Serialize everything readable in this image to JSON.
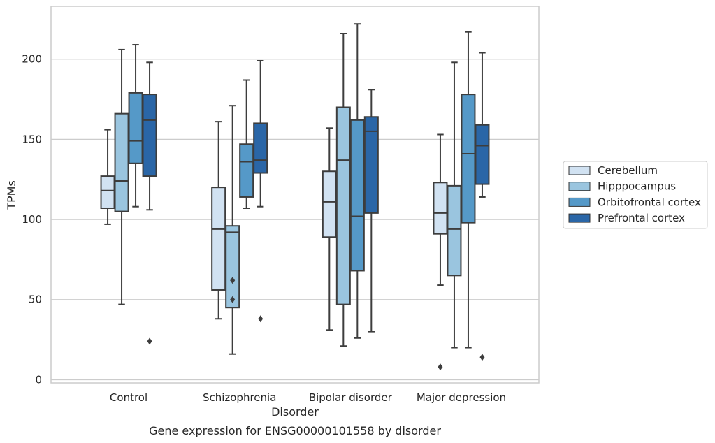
{
  "chart_data": {
    "type": "box",
    "xlabel": "Disorder",
    "ylabel": "TPMs",
    "caption": "Gene expression for ENSG00000101558 by disorder",
    "categories": [
      "Control",
      "Schizophrenia",
      "Bipolar disorder",
      "Major depression"
    ],
    "ylim": [
      -2,
      233
    ],
    "yticks": [
      0,
      50,
      100,
      150,
      200
    ],
    "grid": "horizontal",
    "legend_position": "right",
    "series": [
      {
        "name": "Cerebellum",
        "color": "#d1e2f2",
        "boxes": [
          {
            "whisker_low": 97,
            "q1": 107,
            "median": 118,
            "q3": 127,
            "whisker_high": 156,
            "outliers": []
          },
          {
            "whisker_low": 38,
            "q1": 56,
            "median": 94,
            "q3": 120,
            "whisker_high": 161,
            "outliers": []
          },
          {
            "whisker_low": 31,
            "q1": 89,
            "median": 111,
            "q3": 130,
            "whisker_high": 157,
            "outliers": []
          },
          {
            "whisker_low": 59,
            "q1": 91,
            "median": 104,
            "q3": 123,
            "whisker_high": 153,
            "outliers": [
              8
            ]
          }
        ]
      },
      {
        "name": "Hipppocampus",
        "color": "#9ac5df",
        "boxes": [
          {
            "whisker_low": 47,
            "q1": 105,
            "median": 124,
            "q3": 166,
            "whisker_high": 206,
            "outliers": []
          },
          {
            "whisker_low": 16,
            "q1": 45,
            "median": 92,
            "q3": 96,
            "whisker_high": 171,
            "outliers": [
              62,
              50
            ]
          },
          {
            "whisker_low": 21,
            "q1": 47,
            "median": 137,
            "q3": 170,
            "whisker_high": 216,
            "outliers": []
          },
          {
            "whisker_low": 20,
            "q1": 65,
            "median": 94,
            "q3": 121,
            "whisker_high": 198,
            "outliers": []
          }
        ]
      },
      {
        "name": "Orbitofrontal cortex",
        "color": "#5599c8",
        "boxes": [
          {
            "whisker_low": 108,
            "q1": 135,
            "median": 149,
            "q3": 179,
            "whisker_high": 209,
            "outliers": []
          },
          {
            "whisker_low": 107,
            "q1": 114,
            "median": 136,
            "q3": 147,
            "whisker_high": 187,
            "outliers": []
          },
          {
            "whisker_low": 26,
            "q1": 68,
            "median": 102,
            "q3": 162,
            "whisker_high": 222,
            "outliers": []
          },
          {
            "whisker_low": 20,
            "q1": 98,
            "median": 141,
            "q3": 178,
            "whisker_high": 217,
            "outliers": []
          }
        ]
      },
      {
        "name": "Prefrontal cortex",
        "color": "#2a66a7",
        "boxes": [
          {
            "whisker_low": 106,
            "q1": 127,
            "median": 162,
            "q3": 178,
            "whisker_high": 198,
            "outliers": [
              24
            ]
          },
          {
            "whisker_low": 108,
            "q1": 129,
            "median": 137,
            "q3": 160,
            "whisker_high": 199,
            "outliers": [
              38
            ]
          },
          {
            "whisker_low": 30,
            "q1": 104,
            "median": 155,
            "q3": 164,
            "whisker_high": 181,
            "outliers": []
          },
          {
            "whisker_low": 114,
            "q1": 122,
            "median": 146,
            "q3": 159,
            "whisker_high": 204,
            "outliers": [
              14
            ]
          }
        ]
      }
    ]
  }
}
